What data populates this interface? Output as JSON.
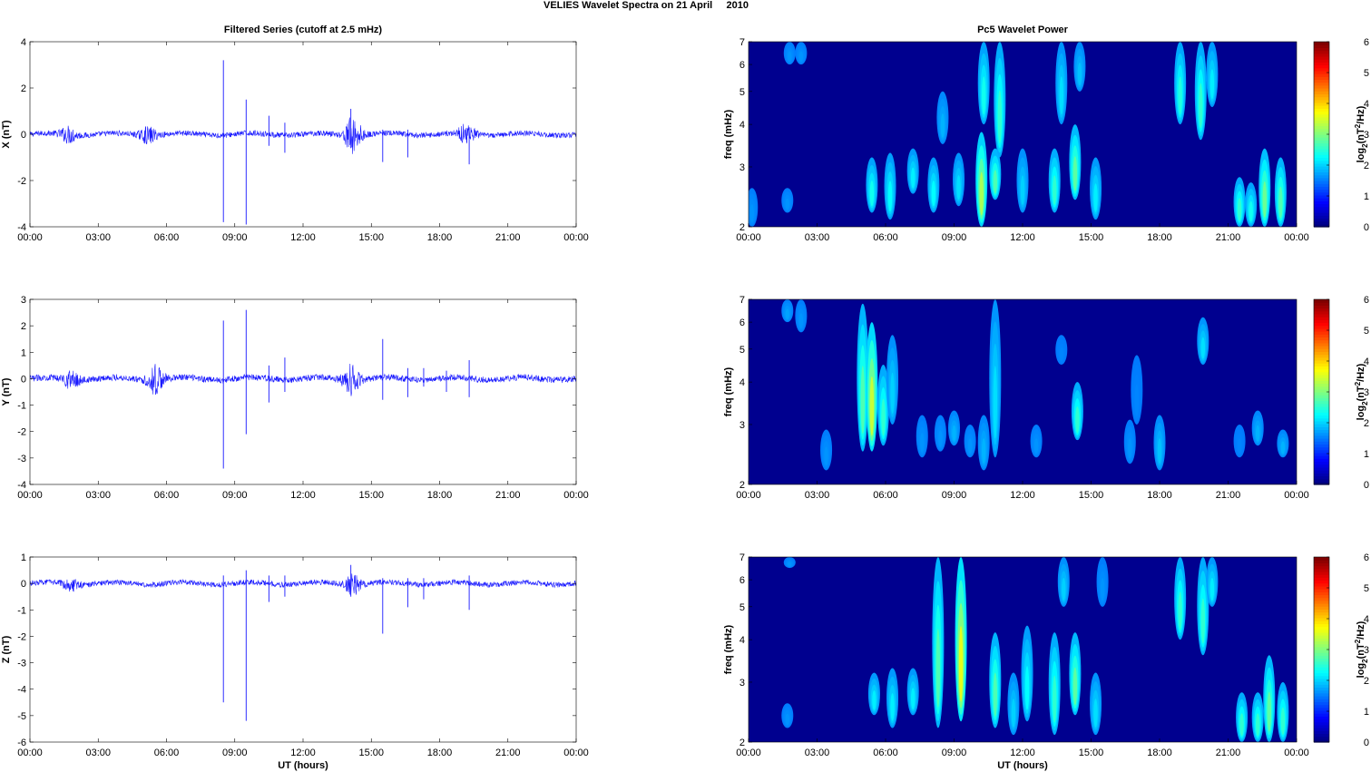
{
  "figure": {
    "title": "VELIES Wavelet Spectra on 21 April     2010"
  },
  "colors": {
    "trace": "#1a1aff",
    "spectrum_background": "#00008f",
    "frame": "#000000"
  },
  "chart_data": [
    {
      "type": "line",
      "title": "Filtered Series (cutoff at 2.5 mHz)",
      "xlabel": "",
      "ylabel": "X (nT)",
      "xlim": [
        0,
        24
      ],
      "ylim": [
        -4,
        4
      ],
      "xticks": [
        "00:00",
        "03:00",
        "06:00",
        "09:00",
        "12:00",
        "15:00",
        "18:00",
        "21:00",
        "00:00"
      ],
      "yticks": [
        "-4",
        "-2",
        "0",
        "2",
        "4"
      ],
      "noise_amplitude": 0.12,
      "bursts": [
        {
          "t": 1.7,
          "a": 0.3
        },
        {
          "t": 5.2,
          "a": 0.3
        },
        {
          "t": 14.2,
          "a": 0.8
        },
        {
          "t": 19.2,
          "a": 0.4
        }
      ],
      "spikes": [
        {
          "t": 8.5,
          "high": 3.2,
          "low": -3.8
        },
        {
          "t": 9.5,
          "high": 1.5,
          "low": -3.9
        },
        {
          "t": 10.5,
          "high": 0.8,
          "low": -0.5
        },
        {
          "t": 11.2,
          "high": 0.5,
          "low": -0.8
        },
        {
          "t": 14.1,
          "high": 1.1,
          "low": -0.6
        },
        {
          "t": 15.5,
          "high": 0.2,
          "low": -1.2
        },
        {
          "t": 16.6,
          "high": 0.2,
          "low": -1.0
        },
        {
          "t": 19.3,
          "high": 0.3,
          "low": -1.3
        }
      ]
    },
    {
      "type": "heatmap",
      "title": "Pc5 Wavelet Power",
      "xlabel": "",
      "ylabel": "freq (mHz)",
      "xlim": [
        0,
        24
      ],
      "ylim": [
        2,
        7
      ],
      "yscale": "log",
      "xticks": [
        "00:00",
        "03:00",
        "06:00",
        "09:00",
        "12:00",
        "15:00",
        "18:00",
        "21:00",
        "00:00"
      ],
      "yticks": [
        "2",
        "3",
        "4",
        "5",
        "6",
        "7"
      ],
      "colorbar": {
        "label": "log2(nT^2/Hz)",
        "ticks": [
          "0",
          "1",
          "2",
          "3",
          "4",
          "5",
          "6"
        ],
        "range": [
          0,
          6
        ]
      },
      "features": [
        {
          "t": 0.15,
          "f0": 2.0,
          "f1": 2.6,
          "p": 1.0
        },
        {
          "t": 1.7,
          "f0": 2.2,
          "f1": 2.6,
          "p": 1.0
        },
        {
          "t": 1.8,
          "f0": 6.0,
          "f1": 7.0,
          "p": 1.0
        },
        {
          "t": 2.3,
          "f0": 6.0,
          "f1": 7.0,
          "p": 1.0
        },
        {
          "t": 5.4,
          "f0": 2.2,
          "f1": 3.2,
          "p": 1.8
        },
        {
          "t": 6.2,
          "f0": 2.1,
          "f1": 3.3,
          "p": 1.7
        },
        {
          "t": 7.2,
          "f0": 2.5,
          "f1": 3.4,
          "p": 1.6
        },
        {
          "t": 8.1,
          "f0": 2.2,
          "f1": 3.2,
          "p": 1.7
        },
        {
          "t": 8.5,
          "f0": 3.5,
          "f1": 5.0,
          "p": 1.2
        },
        {
          "t": 9.2,
          "f0": 2.3,
          "f1": 3.3,
          "p": 1.5
        },
        {
          "t": 10.2,
          "f0": 2.0,
          "f1": 3.8,
          "p": 2.8
        },
        {
          "t": 10.3,
          "f0": 4.0,
          "f1": 7.0,
          "p": 1.8
        },
        {
          "t": 10.8,
          "f0": 2.4,
          "f1": 3.4,
          "p": 2.2
        },
        {
          "t": 11.0,
          "f0": 3.2,
          "f1": 7.0,
          "p": 2.0
        },
        {
          "t": 12.0,
          "f0": 2.2,
          "f1": 3.4,
          "p": 1.4
        },
        {
          "t": 13.4,
          "f0": 2.2,
          "f1": 3.4,
          "p": 2.0
        },
        {
          "t": 13.7,
          "f0": 4.0,
          "f1": 7.0,
          "p": 1.5
        },
        {
          "t": 14.3,
          "f0": 2.4,
          "f1": 4.0,
          "p": 2.3
        },
        {
          "t": 14.5,
          "f0": 5.0,
          "f1": 7.0,
          "p": 1.3
        },
        {
          "t": 15.2,
          "f0": 2.1,
          "f1": 3.2,
          "p": 1.6
        },
        {
          "t": 18.9,
          "f0": 4.0,
          "f1": 7.0,
          "p": 1.9
        },
        {
          "t": 19.8,
          "f0": 3.6,
          "f1": 7.0,
          "p": 2.0
        },
        {
          "t": 20.3,
          "f0": 4.5,
          "f1": 7.0,
          "p": 1.6
        },
        {
          "t": 21.5,
          "f0": 2.0,
          "f1": 2.8,
          "p": 2.0
        },
        {
          "t": 22.0,
          "f0": 2.0,
          "f1": 2.7,
          "p": 1.8
        },
        {
          "t": 22.6,
          "f0": 2.0,
          "f1": 3.4,
          "p": 2.4
        },
        {
          "t": 23.3,
          "f0": 2.0,
          "f1": 3.2,
          "p": 2.2
        }
      ]
    },
    {
      "type": "line",
      "title": "",
      "xlabel": "",
      "ylabel": "Y (nT)",
      "xlim": [
        0,
        24
      ],
      "ylim": [
        -4,
        3
      ],
      "xticks": [
        "00:00",
        "03:00",
        "06:00",
        "09:00",
        "12:00",
        "15:00",
        "18:00",
        "21:00",
        "00:00"
      ],
      "yticks": [
        "-4",
        "-3",
        "-2",
        "-1",
        "0",
        "1",
        "2",
        "3"
      ],
      "noise_amplitude": 0.12,
      "bursts": [
        {
          "t": 1.8,
          "a": 0.3
        },
        {
          "t": 5.5,
          "a": 0.5
        },
        {
          "t": 14.1,
          "a": 0.5
        }
      ],
      "spikes": [
        {
          "t": 8.5,
          "high": 2.2,
          "low": -3.4
        },
        {
          "t": 9.5,
          "high": 2.6,
          "low": -2.1
        },
        {
          "t": 10.5,
          "high": 0.5,
          "low": -0.9
        },
        {
          "t": 11.2,
          "high": 0.8,
          "low": -0.5
        },
        {
          "t": 15.5,
          "high": 1.5,
          "low": -0.8
        },
        {
          "t": 16.6,
          "high": 0.4,
          "low": -0.7
        },
        {
          "t": 17.3,
          "high": 0.4,
          "low": -0.3
        },
        {
          "t": 18.3,
          "high": 0.3,
          "low": -0.5
        },
        {
          "t": 19.3,
          "high": 0.7,
          "low": -0.7
        }
      ]
    },
    {
      "type": "heatmap",
      "title": "",
      "xlabel": "",
      "ylabel": "freq (mHz)",
      "xlim": [
        0,
        24
      ],
      "ylim": [
        2,
        7
      ],
      "yscale": "log",
      "xticks": [
        "00:00",
        "03:00",
        "06:00",
        "09:00",
        "12:00",
        "15:00",
        "18:00",
        "21:00",
        "00:00"
      ],
      "yticks": [
        "2",
        "3",
        "4",
        "5",
        "6",
        "7"
      ],
      "colorbar": {
        "label": "log2(nT^2/Hz)",
        "ticks": [
          "0",
          "1",
          "2",
          "3",
          "4",
          "5",
          "6"
        ],
        "range": [
          0,
          6
        ]
      },
      "features": [
        {
          "t": 1.7,
          "f0": 6.0,
          "f1": 7.0,
          "p": 1.1
        },
        {
          "t": 2.3,
          "f0": 5.6,
          "f1": 7.0,
          "p": 1.0
        },
        {
          "t": 3.4,
          "f0": 2.2,
          "f1": 2.9,
          "p": 1.0
        },
        {
          "t": 5.0,
          "f0": 2.5,
          "f1": 6.8,
          "p": 2.2
        },
        {
          "t": 5.4,
          "f0": 2.5,
          "f1": 6.0,
          "p": 3.0
        },
        {
          "t": 5.9,
          "f0": 2.6,
          "f1": 4.5,
          "p": 2.0
        },
        {
          "t": 6.3,
          "f0": 3.0,
          "f1": 5.5,
          "p": 1.4
        },
        {
          "t": 7.6,
          "f0": 2.4,
          "f1": 3.2,
          "p": 1.0
        },
        {
          "t": 8.4,
          "f0": 2.5,
          "f1": 3.2,
          "p": 1.0
        },
        {
          "t": 9.0,
          "f0": 2.6,
          "f1": 3.3,
          "p": 1.2
        },
        {
          "t": 9.7,
          "f0": 2.4,
          "f1": 3.0,
          "p": 1.0
        },
        {
          "t": 10.3,
          "f0": 2.2,
          "f1": 3.2,
          "p": 1.2
        },
        {
          "t": 10.8,
          "f0": 2.4,
          "f1": 7.0,
          "p": 1.5
        },
        {
          "t": 12.6,
          "f0": 2.4,
          "f1": 3.0,
          "p": 1.0
        },
        {
          "t": 13.7,
          "f0": 4.5,
          "f1": 5.5,
          "p": 0.9
        },
        {
          "t": 14.4,
          "f0": 2.7,
          "f1": 4.0,
          "p": 2.0
        },
        {
          "t": 16.7,
          "f0": 2.3,
          "f1": 3.1,
          "p": 1.0
        },
        {
          "t": 17.0,
          "f0": 3.0,
          "f1": 4.8,
          "p": 0.9
        },
        {
          "t": 18.0,
          "f0": 2.2,
          "f1": 3.2,
          "p": 1.3
        },
        {
          "t": 19.9,
          "f0": 4.5,
          "f1": 6.2,
          "p": 1.5
        },
        {
          "t": 21.5,
          "f0": 2.4,
          "f1": 3.0,
          "p": 0.9
        },
        {
          "t": 22.3,
          "f0": 2.6,
          "f1": 3.3,
          "p": 1.2
        },
        {
          "t": 23.4,
          "f0": 2.4,
          "f1": 2.9,
          "p": 1.2
        }
      ]
    },
    {
      "type": "line",
      "title": "",
      "xlabel": "UT (hours)",
      "ylabel": "Z (nT)",
      "xlim": [
        0,
        24
      ],
      "ylim": [
        -6,
        1
      ],
      "xticks": [
        "00:00",
        "03:00",
        "06:00",
        "09:00",
        "12:00",
        "15:00",
        "18:00",
        "21:00",
        "00:00"
      ],
      "yticks": [
        "-6",
        "-5",
        "-4",
        "-3",
        "-2",
        "-1",
        "0",
        "1"
      ],
      "noise_amplitude": 0.1,
      "bursts": [
        {
          "t": 1.8,
          "a": 0.2
        },
        {
          "t": 14.2,
          "a": 0.35
        }
      ],
      "spikes": [
        {
          "t": 8.5,
          "high": 0.3,
          "low": -4.5
        },
        {
          "t": 9.5,
          "high": 0.5,
          "low": -5.2
        },
        {
          "t": 10.5,
          "high": 0.3,
          "low": -0.7
        },
        {
          "t": 11.2,
          "high": 0.3,
          "low": -0.5
        },
        {
          "t": 14.1,
          "high": 0.7,
          "low": -0.5
        },
        {
          "t": 15.5,
          "high": 0.2,
          "low": -1.9
        },
        {
          "t": 16.6,
          "high": 0.2,
          "low": -0.9
        },
        {
          "t": 17.3,
          "high": 0.2,
          "low": -0.6
        },
        {
          "t": 19.3,
          "high": 0.3,
          "low": -1.0
        }
      ]
    },
    {
      "type": "heatmap",
      "title": "",
      "xlabel": "UT (hours)",
      "ylabel": "freq (mHz)",
      "xlim": [
        0,
        24
      ],
      "ylim": [
        2,
        7
      ],
      "yscale": "log",
      "xticks": [
        "00:00",
        "03:00",
        "06:00",
        "09:00",
        "12:00",
        "15:00",
        "18:00",
        "21:00",
        "00:00"
      ],
      "yticks": [
        "2",
        "3",
        "4",
        "5",
        "6",
        "7"
      ],
      "colorbar": {
        "label": "log2(nT^2/Hz)",
        "ticks": [
          "0",
          "1",
          "2",
          "3",
          "4",
          "5",
          "6"
        ],
        "range": [
          0,
          6
        ]
      },
      "features": [
        {
          "t": 1.7,
          "f0": 2.2,
          "f1": 2.6,
          "p": 1.0
        },
        {
          "t": 1.8,
          "f0": 6.5,
          "f1": 7.0,
          "p": 1.0
        },
        {
          "t": 5.5,
          "f0": 2.4,
          "f1": 3.2,
          "p": 1.6
        },
        {
          "t": 6.3,
          "f0": 2.2,
          "f1": 3.3,
          "p": 1.6
        },
        {
          "t": 7.2,
          "f0": 2.4,
          "f1": 3.3,
          "p": 1.6
        },
        {
          "t": 8.3,
          "f0": 2.2,
          "f1": 7.0,
          "p": 2.2
        },
        {
          "t": 9.3,
          "f0": 2.3,
          "f1": 7.0,
          "p": 3.2
        },
        {
          "t": 10.8,
          "f0": 2.2,
          "f1": 4.2,
          "p": 2.2
        },
        {
          "t": 11.6,
          "f0": 2.1,
          "f1": 3.2,
          "p": 1.4
        },
        {
          "t": 12.2,
          "f0": 2.3,
          "f1": 4.4,
          "p": 1.7
        },
        {
          "t": 13.4,
          "f0": 2.1,
          "f1": 4.2,
          "p": 2.0
        },
        {
          "t": 13.8,
          "f0": 5.0,
          "f1": 7.0,
          "p": 1.4
        },
        {
          "t": 14.3,
          "f0": 2.4,
          "f1": 4.2,
          "p": 2.3
        },
        {
          "t": 15.2,
          "f0": 2.1,
          "f1": 3.2,
          "p": 1.5
        },
        {
          "t": 15.5,
          "f0": 5.0,
          "f1": 7.0,
          "p": 1.0
        },
        {
          "t": 18.9,
          "f0": 4.0,
          "f1": 7.0,
          "p": 2.0
        },
        {
          "t": 19.9,
          "f0": 3.6,
          "f1": 7.0,
          "p": 2.0
        },
        {
          "t": 20.3,
          "f0": 5.0,
          "f1": 7.0,
          "p": 1.6
        },
        {
          "t": 21.6,
          "f0": 2.0,
          "f1": 2.8,
          "p": 2.0
        },
        {
          "t": 22.3,
          "f0": 2.0,
          "f1": 2.8,
          "p": 2.0
        },
        {
          "t": 22.8,
          "f0": 2.0,
          "f1": 3.6,
          "p": 2.3
        },
        {
          "t": 23.4,
          "f0": 2.0,
          "f1": 3.0,
          "p": 2.0
        }
      ]
    }
  ]
}
